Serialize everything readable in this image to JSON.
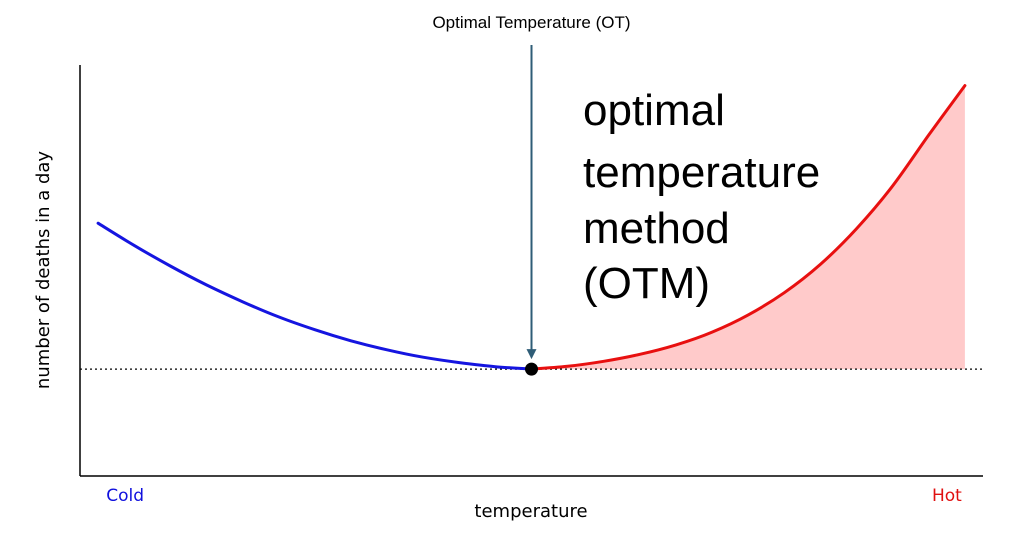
{
  "chart_data": {
    "type": "line",
    "title": "",
    "xlabel": "temperature",
    "ylabel": "number of deaths in a day",
    "xlim": [
      0,
      100
    ],
    "ylim": [
      0,
      100
    ],
    "x_tick_labels": [
      {
        "label": "Cold",
        "x": 5,
        "color": "#1010dd"
      },
      {
        "label": "Hot",
        "x": 96,
        "color": "#e01010"
      }
    ],
    "optimal_point": {
      "x": 50,
      "y": 26
    },
    "baseline_y": 26,
    "annotation": {
      "text": "Optimal Temperature (OT)",
      "target": "optimal_point"
    },
    "overlay_text": [
      "optimal",
      "temperature",
      "method",
      "(OTM)"
    ],
    "series": [
      {
        "name": "cold side",
        "color": "#1515e0",
        "x": [
          2,
          6,
          10,
          14,
          18,
          22,
          26,
          30,
          34,
          38,
          42,
          46,
          50
        ],
        "y": [
          61.5,
          56.1,
          51.1,
          46.5,
          42.4,
          38.7,
          35.6,
          32.9,
          30.7,
          28.9,
          27.6,
          26.6,
          26.0
        ]
      },
      {
        "name": "hot side",
        "color": "#e81010",
        "fill": "#ffcaca",
        "x": [
          50,
          54,
          58,
          62,
          66,
          70,
          74,
          78,
          82,
          86,
          90,
          94,
          98
        ],
        "y": [
          26.0,
          26.7,
          27.9,
          29.6,
          31.9,
          35.0,
          39.2,
          44.6,
          51.5,
          60.2,
          70.6,
          83.0,
          95.0
        ]
      }
    ]
  }
}
